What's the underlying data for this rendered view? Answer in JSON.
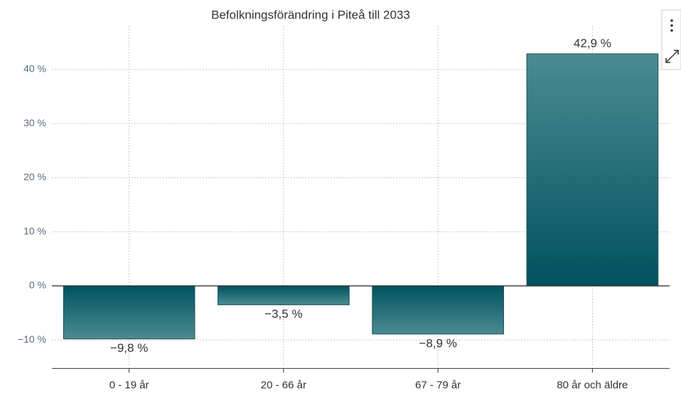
{
  "chart_data": {
    "type": "bar",
    "title": "Befolkningsförändring i Piteå till 2033",
    "categories": [
      "0 - 19 år",
      "20 - 66 år",
      "67 - 79 år",
      "80 år och äldre"
    ],
    "values": [
      -9.8,
      -3.5,
      -8.9,
      42.9
    ],
    "value_labels": [
      "−9,8 %",
      "−3,5 %",
      "−8,9 %",
      "42,9 %"
    ],
    "color": "#0a5c6a",
    "ylim": [
      -15,
      48
    ],
    "yticks": [
      {
        "value": -10,
        "label": "−10 %"
      },
      {
        "value": 0,
        "label": "0 %"
      },
      {
        "value": 10,
        "label": "10 %"
      },
      {
        "value": 20,
        "label": "20 %"
      },
      {
        "value": 30,
        "label": "30 %"
      },
      {
        "value": 40,
        "label": "40 %"
      }
    ],
    "grid": true
  }
}
